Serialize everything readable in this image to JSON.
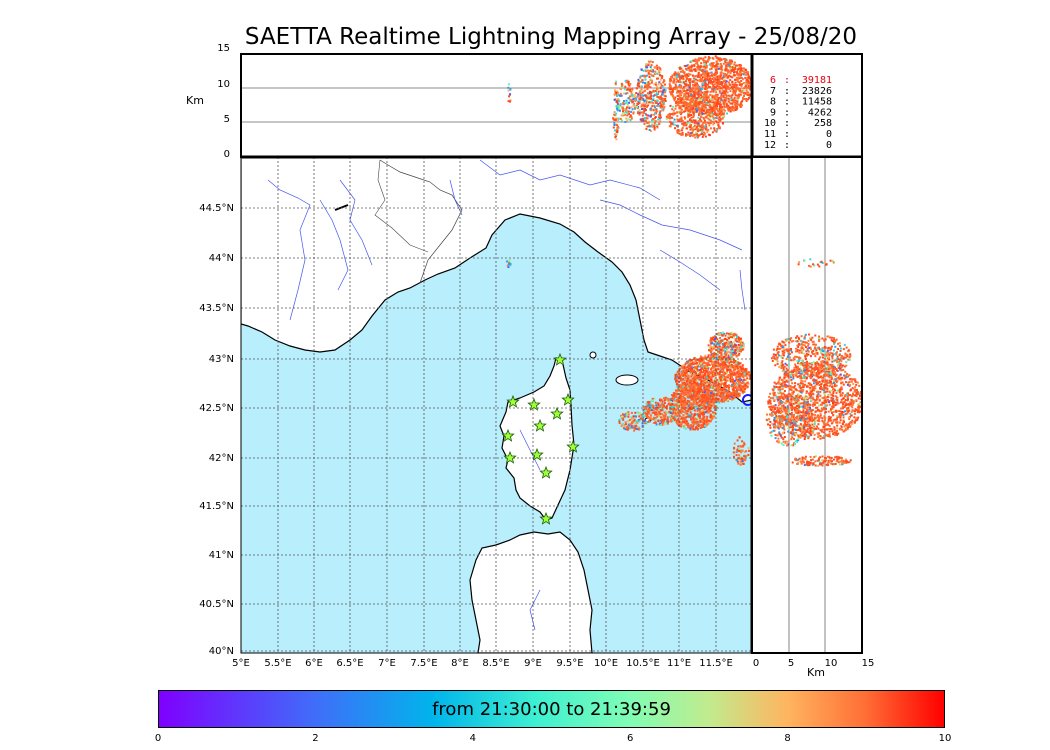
{
  "title": "SAETTA Realtime Lightning Mapping Array - 25/08/20",
  "altitude_panel": {
    "unit_label": "Km",
    "y_ticks": [
      "15",
      "10",
      "5",
      "0"
    ]
  },
  "map": {
    "lat_ticks": [
      "44.5°N",
      "44°N",
      "43.5°N",
      "43°N",
      "42.5°N",
      "42°N",
      "41.5°N",
      "41°N",
      "40.5°N",
      "40°N"
    ],
    "lon_ticks": [
      "5°E",
      "5.5°E",
      "6°E",
      "6.5°E",
      "7°E",
      "7.5°E",
      "8°E",
      "8.5°E",
      "9°E",
      "9.5°E",
      "10°E",
      "10.5°E",
      "11°E",
      "11.5°E"
    ],
    "sea_color": "#b9eefc",
    "land_color": "#ffffff"
  },
  "side_panel": {
    "x_ticks": [
      "0",
      "5",
      "10",
      "15"
    ],
    "unit_label": "Km"
  },
  "station_counts": [
    {
      "station": "6",
      "count": "39181",
      "color": "#e8000b"
    },
    {
      "station": "7",
      "count": "23826",
      "color": "#000000"
    },
    {
      "station": "8",
      "count": "11458",
      "color": "#000000"
    },
    {
      "station": "9",
      "count": "4262",
      "color": "#000000"
    },
    {
      "station": "10",
      "count": "258",
      "color": "#000000"
    },
    {
      "station": "11",
      "count": "0",
      "color": "#000000"
    },
    {
      "station": "12",
      "count": "0",
      "color": "#000000"
    }
  ],
  "colorbar": {
    "label": "from 21:30:00 to 21:39:59",
    "ticks": [
      "0",
      "2",
      "4",
      "6",
      "8",
      "10"
    ]
  }
}
